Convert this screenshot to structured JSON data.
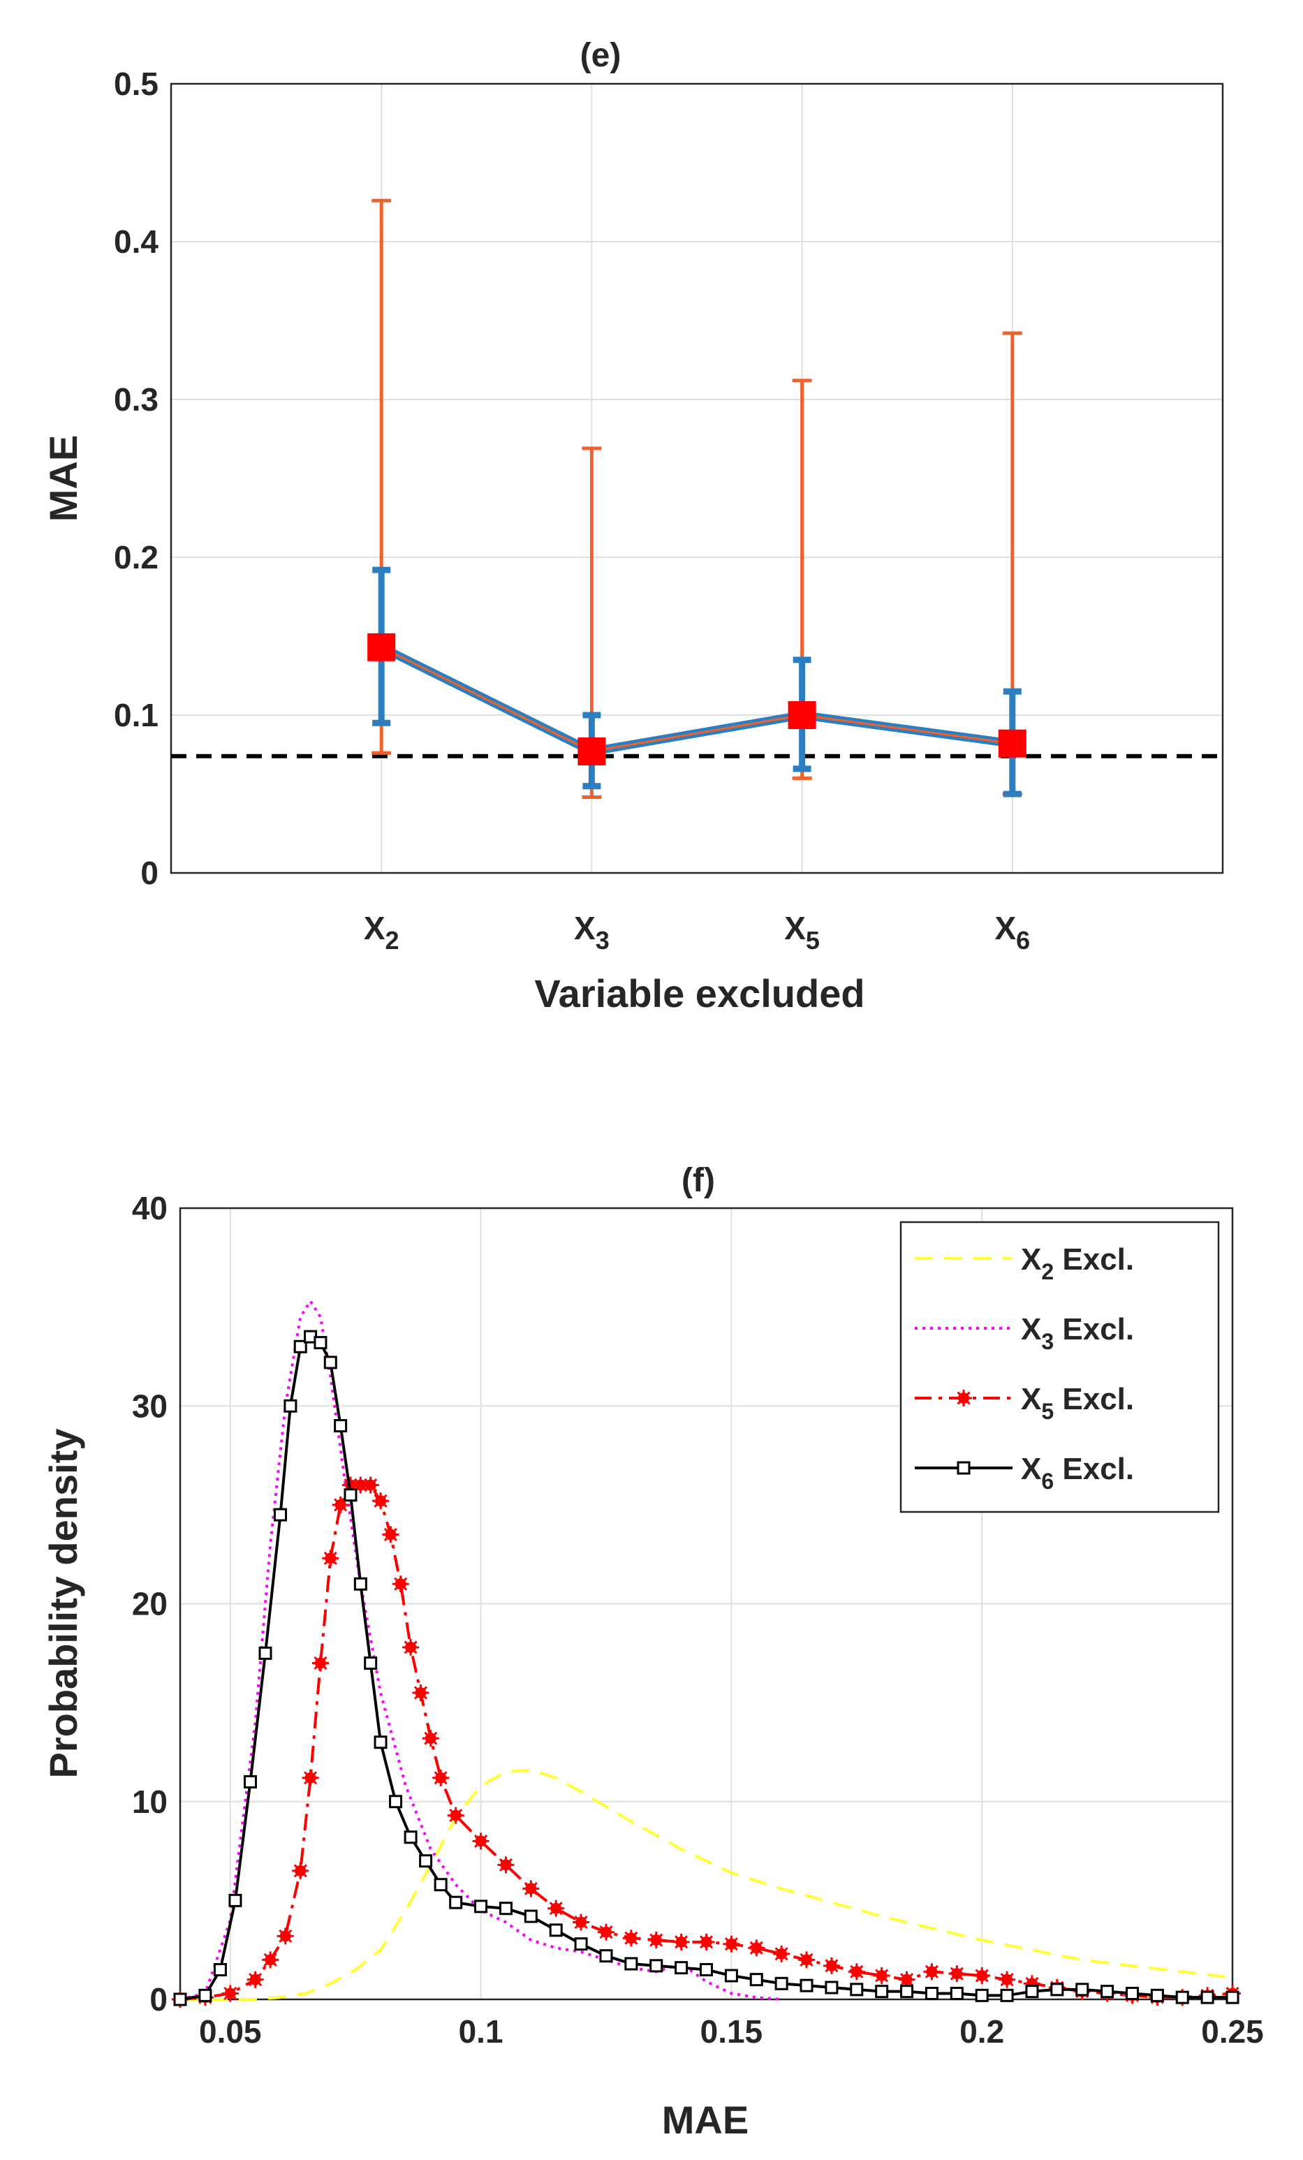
{
  "chart_data": [
    {
      "id": "e",
      "type": "line-errorbar",
      "title": "(e)",
      "xlabel": "Variable excluded",
      "ylabel": "MAE",
      "ylim": [
        0,
        0.5
      ],
      "yticks": [
        0,
        0.1,
        0.2,
        0.3,
        0.4,
        0.5
      ],
      "ytick_labels": [
        "0",
        "0.1",
        "0.2",
        "0.3",
        "0.4",
        "0.5"
      ],
      "categories": [
        {
          "base": "X",
          "sub": "2"
        },
        {
          "base": "X",
          "sub": "3"
        },
        {
          "base": "X",
          "sub": "5"
        },
        {
          "base": "X",
          "sub": "6"
        }
      ],
      "means": [
        0.143,
        0.077,
        0.1,
        0.082
      ],
      "inner_error": {
        "low": [
          0.095,
          0.055,
          0.066,
          0.05
        ],
        "high": [
          0.192,
          0.1,
          0.135,
          0.115
        ]
      },
      "outer_error": {
        "low": [
          0.076,
          0.048,
          0.06,
          0.05
        ],
        "high": [
          0.426,
          0.269,
          0.312,
          0.342
        ]
      },
      "reference_line": 0.074,
      "colors": {
        "line": "#2b7fc1",
        "inner": "#2b7fc1",
        "outer": "#f0622c",
        "marker": "#ff0000",
        "reference": "#000000"
      },
      "grid": true
    },
    {
      "id": "f",
      "type": "line",
      "title": "(f)",
      "xlabel": "MAE",
      "ylabel": "Probability density",
      "xlim": [
        0.04,
        0.25
      ],
      "ylim": [
        0,
        40
      ],
      "xticks": [
        0.05,
        0.1,
        0.15,
        0.2,
        0.25
      ],
      "xtick_labels": [
        "0.05",
        "0.1",
        "0.15",
        "0.2",
        "0.25"
      ],
      "yticks": [
        0,
        10,
        20,
        30,
        40
      ],
      "ytick_labels": [
        "0",
        "10",
        "20",
        "30",
        "40"
      ],
      "legend_position": "top-right",
      "grid": true,
      "series": [
        {
          "name": "X2 Excl.",
          "label_base": "X",
          "label_sub": "2",
          "label_rest": " Excl.",
          "color": "#ffff33",
          "style": "dashed",
          "marker": "none",
          "x": [
            0.04,
            0.055,
            0.06,
            0.065,
            0.07,
            0.075,
            0.08,
            0.085,
            0.09,
            0.095,
            0.1,
            0.105,
            0.11,
            0.115,
            0.12,
            0.13,
            0.14,
            0.15,
            0.16,
            0.17,
            0.18,
            0.19,
            0.2,
            0.21,
            0.22,
            0.23,
            0.24,
            0.25
          ],
          "y": [
            0,
            0,
            0.1,
            0.3,
            0.8,
            1.5,
            2.5,
            4.5,
            6.8,
            9.2,
            10.8,
            11.5,
            11.6,
            11.2,
            10.5,
            9.0,
            7.6,
            6.4,
            5.6,
            4.9,
            4.2,
            3.6,
            3.0,
            2.5,
            2.0,
            1.7,
            1.4,
            1.1
          ]
        },
        {
          "name": "X3 Excl.",
          "label_base": "X",
          "label_sub": "3",
          "label_rest": " Excl.",
          "color": "#ff00ff",
          "style": "dotted",
          "marker": "none",
          "x": [
            0.04,
            0.045,
            0.05,
            0.055,
            0.058,
            0.061,
            0.064,
            0.066,
            0.068,
            0.07,
            0.073,
            0.076,
            0.08,
            0.085,
            0.09,
            0.095,
            0.1,
            0.105,
            0.11,
            0.115,
            0.12,
            0.125,
            0.13,
            0.135,
            0.14,
            0.145,
            0.15,
            0.155,
            0.16
          ],
          "y": [
            0,
            0.3,
            4,
            14,
            23,
            30,
            34.5,
            35.3,
            34.5,
            31.5,
            26,
            21,
            15.5,
            10.8,
            7.6,
            5.8,
            4.5,
            3.9,
            3.0,
            2.6,
            2.4,
            2.0,
            1.6,
            1.4,
            1.8,
            0.9,
            0.3,
            0.1,
            0
          ]
        },
        {
          "name": "X5 Excl.",
          "label_base": "X",
          "label_sub": "5",
          "label_rest": " Excl.",
          "color": "#ff0000",
          "style": "dashdot",
          "marker": "star",
          "x": [
            0.04,
            0.045,
            0.05,
            0.055,
            0.058,
            0.061,
            0.064,
            0.066,
            0.068,
            0.07,
            0.072,
            0.074,
            0.076,
            0.078,
            0.08,
            0.082,
            0.084,
            0.086,
            0.088,
            0.09,
            0.092,
            0.095,
            0.1,
            0.105,
            0.11,
            0.115,
            0.12,
            0.125,
            0.13,
            0.135,
            0.14,
            0.145,
            0.15,
            0.155,
            0.16,
            0.165,
            0.17,
            0.175,
            0.18,
            0.185,
            0.19,
            0.195,
            0.2,
            0.205,
            0.21,
            0.215,
            0.22,
            0.225,
            0.23,
            0.235,
            0.24,
            0.245,
            0.25
          ],
          "y": [
            0,
            0.1,
            0.3,
            1.0,
            2.0,
            3.2,
            6.5,
            11.2,
            17.0,
            22.3,
            25.0,
            26.0,
            26.0,
            26.0,
            25.2,
            23.5,
            21.0,
            17.8,
            15.5,
            13.2,
            11.2,
            9.3,
            8.0,
            6.8,
            5.6,
            4.6,
            3.9,
            3.4,
            3.1,
            3.0,
            2.9,
            2.9,
            2.8,
            2.6,
            2.3,
            2.0,
            1.7,
            1.4,
            1.2,
            1.0,
            1.4,
            1.3,
            1.2,
            1.0,
            0.8,
            0.6,
            0.4,
            0.3,
            0.2,
            0.1,
            0.1,
            0.2,
            0.3
          ]
        },
        {
          "name": "X6 Excl.",
          "label_base": "X",
          "label_sub": "6",
          "label_rest": " Excl.",
          "color": "#000000",
          "style": "solid",
          "marker": "square",
          "x": [
            0.04,
            0.045,
            0.048,
            0.051,
            0.054,
            0.057,
            0.06,
            0.062,
            0.064,
            0.066,
            0.068,
            0.07,
            0.072,
            0.074,
            0.076,
            0.078,
            0.08,
            0.083,
            0.086,
            0.089,
            0.092,
            0.095,
            0.1,
            0.105,
            0.11,
            0.115,
            0.12,
            0.125,
            0.13,
            0.135,
            0.14,
            0.145,
            0.15,
            0.155,
            0.16,
            0.165,
            0.17,
            0.175,
            0.18,
            0.185,
            0.19,
            0.195,
            0.2,
            0.205,
            0.21,
            0.215,
            0.22,
            0.225,
            0.23,
            0.235,
            0.24,
            0.245,
            0.25
          ],
          "y": [
            0,
            0.2,
            1.5,
            5.0,
            11.0,
            17.5,
            24.5,
            30.0,
            33.0,
            33.5,
            33.2,
            32.2,
            29.0,
            25.5,
            21.0,
            17.0,
            13.0,
            10.0,
            8.2,
            7.0,
            5.8,
            4.9,
            4.7,
            4.6,
            4.2,
            3.5,
            2.8,
            2.2,
            1.8,
            1.7,
            1.6,
            1.5,
            1.2,
            1.0,
            0.8,
            0.7,
            0.6,
            0.5,
            0.4,
            0.4,
            0.3,
            0.3,
            0.2,
            0.2,
            0.4,
            0.5,
            0.5,
            0.4,
            0.3,
            0.2,
            0.1,
            0.1,
            0.1
          ]
        }
      ]
    }
  ]
}
